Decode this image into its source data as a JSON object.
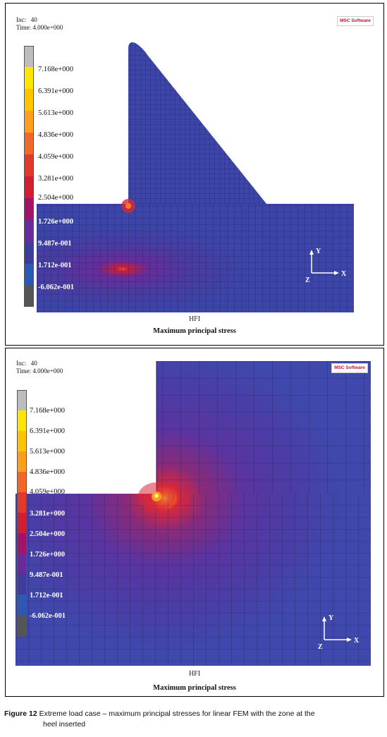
{
  "panels": [
    {
      "inc_label": "Inc:   40",
      "time_label": "Time: 4.000e+000",
      "logo": "MSC Software",
      "legend_values": [
        "7.168e+000",
        "6.391e+000",
        "5.613e+000",
        "4.836e+000",
        "4.059e+000",
        "3.281e+000",
        "2.504e+000",
        "1.726e+000",
        "9.487e-001",
        "1.712e-001",
        "-6.062e-001"
      ],
      "subtitle": "HFI",
      "title": "Maximum principal stress",
      "axes": {
        "y": "Y",
        "x": "X",
        "z": "Z"
      }
    },
    {
      "inc_label": "Inc:   40",
      "time_label": "Time: 4.000e+000",
      "logo": "MSC Software",
      "legend_values": [
        "7.168e+000",
        "6.391e+000",
        "5.613e+000",
        "4.836e+000",
        "4.059e+000",
        "3.281e+000",
        "2.504e+000",
        "1.726e+000",
        "9.487e-001",
        "1.712e-001",
        "-6.062e-001"
      ],
      "subtitle": "HFI",
      "title": "Maximum principal stress",
      "axes": {
        "y": "Y",
        "x": "X",
        "z": "Z"
      }
    }
  ],
  "legend_colors": [
    "#bdbdbd",
    "#ffe600",
    "#ffc400",
    "#ff9d1c",
    "#f2672a",
    "#e23a2a",
    "#cf1f30",
    "#a3136a",
    "#6a2b9a",
    "#3e3d9e",
    "#3546a6",
    "#2b59b5",
    "#555555"
  ],
  "caption": {
    "label": "Figure 12",
    "text": "Extreme load case – maximum principal stresses for linear FEM with the zone at the",
    "text2": "heel inserted"
  }
}
